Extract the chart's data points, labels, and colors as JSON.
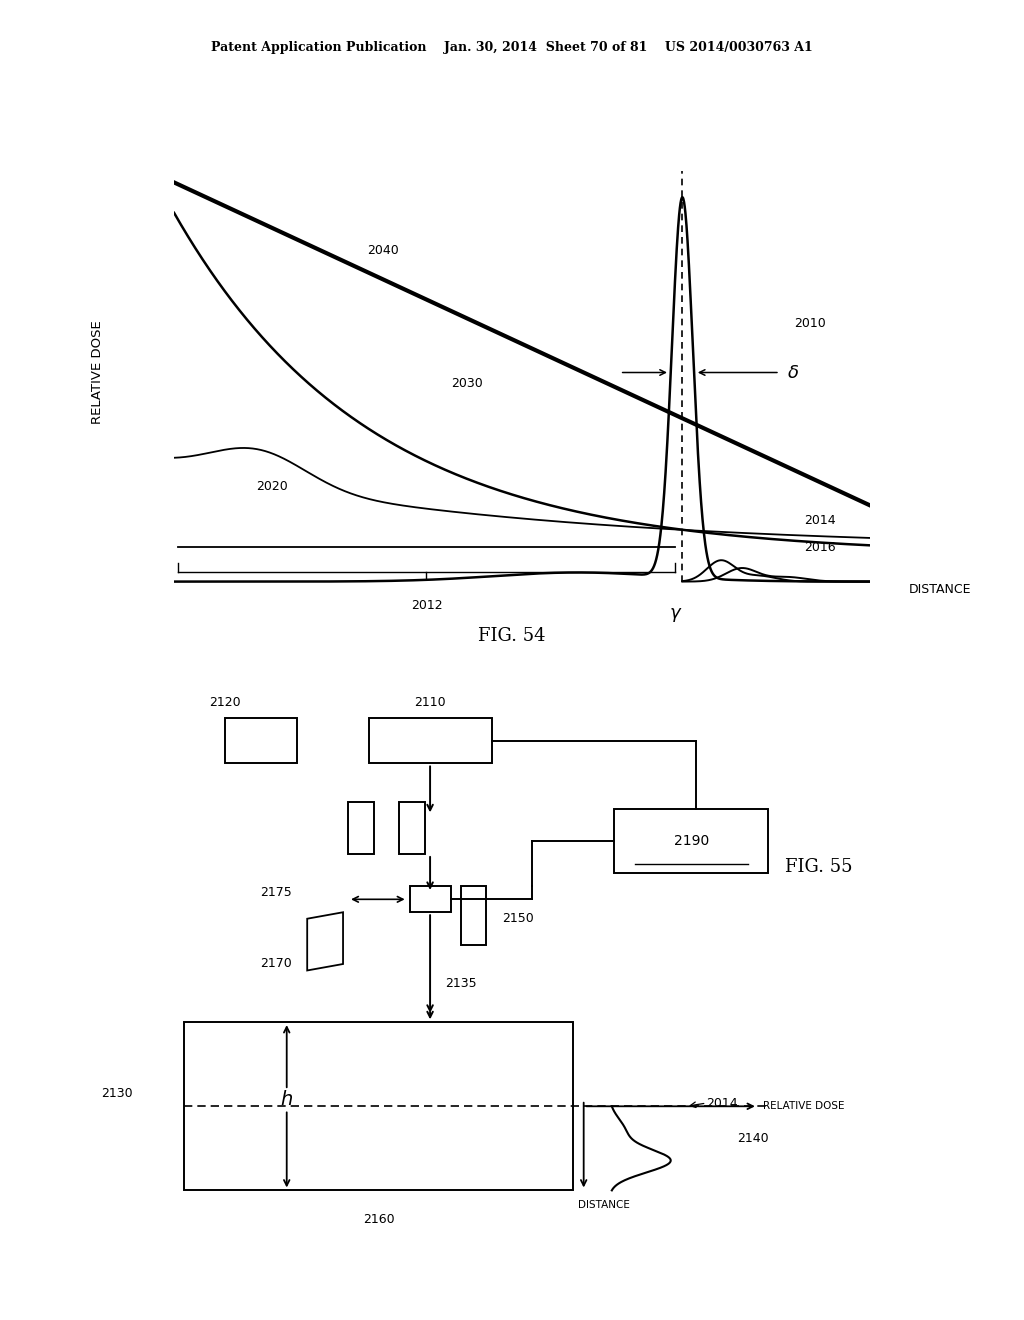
{
  "bg_color": "#ffffff",
  "header_text": "Patent Application Publication    Jan. 30, 2014  Sheet 70 of 81    US 2014/0030763 A1",
  "fig54_title": "FIG. 54",
  "fig55_title": "FIG. 55",
  "ylabel_fig54": "RELATIVE DOSE",
  "xlabel_fig54": "DISTANCE",
  "gamma_label": "γ",
  "delta_label": "δ",
  "line_color": "#000000",
  "text_color": "#000000",
  "gray_color": "#555555"
}
